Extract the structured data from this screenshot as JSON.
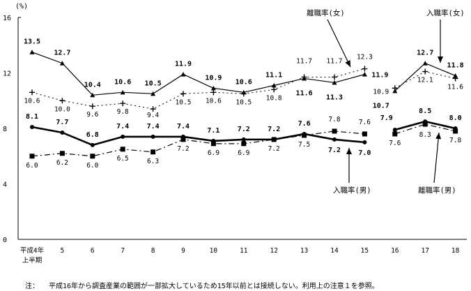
{
  "chart_data": {
    "type": "line",
    "unit_label": "(%)",
    "ylim": [
      0,
      16
    ],
    "yticks": [
      0,
      4,
      8,
      12,
      16
    ],
    "categories": [
      "平成4年\n上半期",
      "5",
      "6",
      "7",
      "8",
      "9",
      "10",
      "11",
      "12",
      "13",
      "14",
      "15",
      "16",
      "17",
      "18"
    ],
    "break_after_index": 11,
    "series": [
      {
        "name": "入職率(女)",
        "style": "solid-thin",
        "values": [
          13.5,
          12.7,
          10.4,
          10.6,
          10.5,
          11.9,
          10.9,
          10.6,
          11.1,
          11.6,
          11.3,
          11.9,
          10.7,
          12.7,
          11.8
        ]
      },
      {
        "name": "離職率(女)",
        "style": "dotted-plus",
        "values": [
          10.6,
          10.0,
          9.6,
          9.8,
          9.4,
          10.5,
          10.6,
          10.5,
          10.8,
          11.7,
          11.7,
          12.3,
          10.9,
          12.1,
          11.6
        ]
      },
      {
        "name": "入職率(男)",
        "style": "solid-thick",
        "values": [
          8.1,
          7.7,
          6.8,
          7.4,
          7.4,
          7.4,
          7.1,
          7.2,
          7.2,
          7.6,
          7.2,
          7.0,
          7.9,
          8.5,
          8.0
        ]
      },
      {
        "name": "離職率(男)",
        "style": "dashdot-square",
        "values": [
          6.0,
          6.2,
          6.0,
          6.5,
          6.3,
          7.2,
          6.9,
          6.9,
          7.2,
          7.5,
          7.8,
          7.6,
          7.6,
          8.3,
          7.8
        ]
      }
    ],
    "annotations": [
      "離職率(女)",
      "入職率(女)",
      "入職率(男)",
      "離職率(男)"
    ]
  },
  "note": {
    "label": "注：",
    "text": "平成16年から調査産業の範囲が一部拡大しているため15年以前とは接続しない。利用上の注意１を参照。"
  }
}
